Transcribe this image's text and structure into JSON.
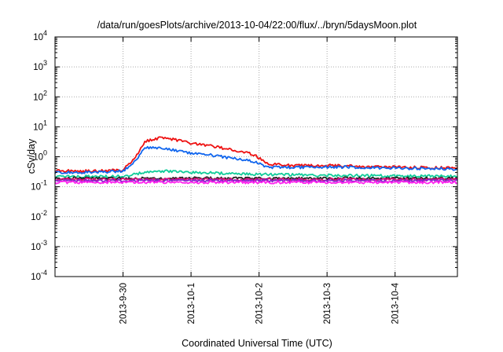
{
  "chart_data": {
    "type": "line",
    "title": "/data/run/goesPlots/archive/2013-10-04/22:00/flux/../bryn/5daysMoon.plot",
    "xlabel": "Coordinated Universal Time (UTC)",
    "ylabel": "cSv/day",
    "yscale": "log",
    "ylim": [
      0.0001,
      10000
    ],
    "xlim": [
      "2013-09-29 00:00",
      "2013-10-04 22:00"
    ],
    "grid": true,
    "legend": "none",
    "yticks": [
      {
        "value": 0.0001,
        "base": "10",
        "exp": "-4"
      },
      {
        "value": 0.001,
        "base": "10",
        "exp": "-3"
      },
      {
        "value": 0.01,
        "base": "10",
        "exp": "-2"
      },
      {
        "value": 0.1,
        "base": "10",
        "exp": "-1"
      },
      {
        "value": 1,
        "base": "10",
        "exp": "0"
      },
      {
        "value": 10,
        "base": "10",
        "exp": "1"
      },
      {
        "value": 100,
        "base": "10",
        "exp": "2"
      },
      {
        "value": 1000,
        "base": "10",
        "exp": "3"
      },
      {
        "value": 10000,
        "base": "10",
        "exp": "4"
      }
    ],
    "xticks": [
      {
        "value": "2013-09-30",
        "label": "2013-9-30"
      },
      {
        "value": "2013-10-01",
        "label": "2013-10-1"
      },
      {
        "value": "2013-10-02",
        "label": "2013-10-2"
      },
      {
        "value": "2013-10-03",
        "label": "2013-10-3"
      },
      {
        "value": "2013-10-04",
        "label": "2013-10-4"
      }
    ],
    "series": [
      {
        "color": "#ee1111",
        "x": [
          "2013-09-29 00:00",
          "2013-09-29 12:00",
          "2013-09-30 00:00",
          "2013-09-30 04:00",
          "2013-09-30 08:00",
          "2013-09-30 14:00",
          "2013-09-30 20:00",
          "2013-10-01 00:00",
          "2013-10-01 08:00",
          "2013-10-01 16:00",
          "2013-10-01 22:00",
          "2013-10-02 03:00",
          "2013-10-02 12:00",
          "2013-10-03 00:00",
          "2013-10-03 12:00",
          "2013-10-04 00:00",
          "2013-10-04 22:00"
        ],
        "values": [
          0.34,
          0.33,
          0.36,
          0.9,
          3.3,
          4.5,
          3.4,
          2.8,
          2.2,
          1.6,
          1.2,
          0.58,
          0.5,
          0.52,
          0.47,
          0.45,
          0.42
        ]
      },
      {
        "color": "#1166ee",
        "x": [
          "2013-09-29 00:00",
          "2013-09-29 12:00",
          "2013-09-30 00:00",
          "2013-09-30 04:00",
          "2013-09-30 08:00",
          "2013-09-30 14:00",
          "2013-09-30 20:00",
          "2013-10-01 00:00",
          "2013-10-01 08:00",
          "2013-10-01 16:00",
          "2013-10-01 22:00",
          "2013-10-02 03:00",
          "2013-10-02 12:00",
          "2013-10-03 00:00",
          "2013-10-03 12:00",
          "2013-10-04 00:00",
          "2013-10-04 22:00"
        ],
        "values": [
          0.3,
          0.3,
          0.33,
          0.7,
          2.0,
          2.0,
          1.5,
          1.3,
          1.1,
          0.85,
          0.7,
          0.45,
          0.44,
          0.46,
          0.44,
          0.42,
          0.39
        ]
      },
      {
        "color": "#11cc99",
        "x": [
          "2013-09-29 00:00",
          "2013-09-30 00:00",
          "2013-09-30 06:00",
          "2013-09-30 12:00",
          "2013-10-01 00:00",
          "2013-10-02 00:00",
          "2013-10-03 00:00",
          "2013-10-04 00:00",
          "2013-10-04 22:00"
        ],
        "values": [
          0.22,
          0.22,
          0.28,
          0.34,
          0.3,
          0.26,
          0.24,
          0.23,
          0.22
        ]
      },
      {
        "color": "#222222",
        "x": [
          "2013-09-29 00:00",
          "2013-10-04 22:00"
        ],
        "values": [
          0.19,
          0.19
        ]
      },
      {
        "color": "#dd1177",
        "x": [
          "2013-09-29 00:00",
          "2013-10-04 22:00"
        ],
        "values": [
          0.175,
          0.175
        ]
      },
      {
        "color": "#8822cc",
        "x": [
          "2013-09-29 00:00",
          "2013-10-04 22:00"
        ],
        "values": [
          0.16,
          0.16
        ]
      },
      {
        "color": "#ff22ee",
        "x": [
          "2013-09-29 00:00",
          "2013-10-04 22:00"
        ],
        "values": [
          0.14,
          0.14
        ]
      }
    ]
  }
}
